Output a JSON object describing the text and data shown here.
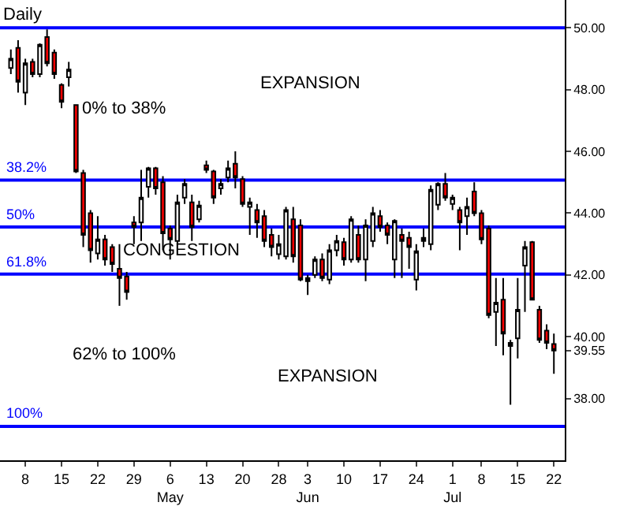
{
  "chart_data": {
    "type": "candlestick",
    "title": "Daily",
    "categories": [
      null,
      null,
      "8",
      null,
      null,
      null,
      null,
      "15",
      null,
      null,
      null,
      null,
      "22",
      null,
      null,
      null,
      null,
      "29",
      null,
      null,
      null,
      null,
      "6\nMay",
      null,
      null,
      null,
      null,
      "13",
      null,
      null,
      null,
      null,
      "20",
      null,
      null,
      null,
      null,
      "28",
      null,
      null,
      null,
      "3\nJun",
      null,
      null,
      null,
      null,
      "10",
      null,
      null,
      null,
      null,
      "17",
      null,
      null,
      null,
      null,
      "24",
      null,
      null,
      null,
      null,
      "1\nJul",
      null,
      null,
      null,
      "8",
      null,
      null,
      null,
      null,
      "15",
      null,
      null,
      null,
      null,
      "22"
    ],
    "ohlc": [
      [
        48.7,
        49.3,
        48.5,
        49.0
      ],
      [
        49.35,
        49.6,
        47.9,
        48.25
      ],
      [
        47.9,
        49.0,
        47.5,
        48.85
      ],
      [
        48.9,
        49.0,
        48.4,
        48.5
      ],
      [
        48.5,
        49.5,
        48.4,
        49.45
      ],
      [
        49.7,
        49.95,
        48.75,
        48.85
      ],
      [
        49.2,
        49.3,
        48.35,
        48.5
      ],
      [
        48.15,
        48.2,
        47.4,
        47.6
      ],
      [
        48.4,
        48.9,
        48.1,
        48.65
      ],
      [
        47.5,
        47.5,
        45.3,
        45.35
      ],
      [
        45.3,
        45.4,
        42.9,
        43.3
      ],
      [
        44.0,
        44.1,
        42.4,
        42.8
      ],
      [
        42.7,
        43.9,
        42.5,
        43.15
      ],
      [
        43.15,
        43.3,
        42.3,
        42.5
      ],
      [
        42.9,
        43.0,
        42.1,
        42.35
      ],
      [
        42.2,
        43.0,
        41.0,
        41.9
      ],
      [
        41.95,
        42.1,
        41.2,
        41.45
      ],
      [
        43.7,
        43.9,
        43.0,
        43.55
      ],
      [
        43.7,
        45.4,
        43.1,
        44.5
      ],
      [
        44.85,
        45.5,
        44.5,
        45.45
      ],
      [
        45.45,
        45.5,
        44.6,
        44.8
      ],
      [
        45.0,
        45.2,
        42.8,
        43.35
      ],
      [
        43.5,
        43.6,
        42.5,
        43.15
      ],
      [
        43.1,
        44.6,
        43.0,
        44.35
      ],
      [
        44.5,
        45.1,
        44.3,
        44.95
      ],
      [
        44.35,
        44.6,
        43.1,
        43.55
      ],
      [
        43.8,
        44.4,
        43.7,
        44.25
      ],
      [
        45.55,
        45.7,
        45.3,
        45.4
      ],
      [
        45.35,
        45.4,
        44.3,
        44.5
      ],
      [
        44.8,
        45.1,
        44.6,
        44.95
      ],
      [
        45.15,
        45.7,
        45.0,
        45.45
      ],
      [
        45.6,
        46.0,
        44.8,
        45.15
      ],
      [
        45.1,
        45.2,
        44.2,
        44.3
      ],
      [
        44.2,
        44.5,
        43.3,
        44.35
      ],
      [
        44.1,
        44.3,
        43.2,
        43.7
      ],
      [
        43.9,
        44.1,
        42.9,
        43.1
      ],
      [
        43.3,
        43.5,
        42.6,
        42.9
      ],
      [
        42.67,
        43.3,
        42.5,
        43.0
      ],
      [
        42.6,
        44.2,
        42.5,
        44.1
      ],
      [
        43.8,
        44.2,
        42.4,
        42.6
      ],
      [
        43.6,
        43.8,
        41.8,
        41.85
      ],
      [
        41.8,
        42.0,
        41.35,
        41.9
      ],
      [
        42.0,
        42.6,
        41.9,
        42.5
      ],
      [
        42.5,
        42.7,
        41.8,
        41.9
      ],
      [
        41.85,
        43.0,
        41.7,
        42.8
      ],
      [
        42.8,
        43.3,
        42.6,
        43.1
      ],
      [
        43.06,
        43.2,
        42.3,
        42.5
      ],
      [
        42.5,
        43.9,
        42.4,
        43.8
      ],
      [
        43.3,
        43.6,
        42.4,
        42.5
      ],
      [
        42.5,
        43.8,
        41.8,
        43.6
      ],
      [
        43.1,
        44.2,
        42.9,
        44.0
      ],
      [
        43.9,
        44.1,
        43.4,
        43.55
      ],
      [
        43.6,
        43.7,
        43.0,
        43.3
      ],
      [
        42.5,
        43.8,
        41.9,
        43.75
      ],
      [
        43.3,
        43.5,
        41.9,
        43.1
      ],
      [
        43.2,
        43.4,
        42.2,
        42.9
      ],
      [
        41.85,
        43.0,
        41.5,
        42.77
      ],
      [
        43.1,
        43.5,
        42.9,
        43.2
      ],
      [
        43.0,
        44.9,
        42.8,
        44.76
      ],
      [
        44.27,
        45.0,
        44.1,
        44.95
      ],
      [
        44.95,
        45.3,
        44.4,
        44.5
      ],
      [
        44.3,
        44.6,
        44.1,
        44.5
      ],
      [
        44.1,
        44.2,
        42.8,
        43.7
      ],
      [
        43.9,
        44.5,
        43.3,
        44.2
      ],
      [
        44.7,
        45.0,
        43.9,
        44.0
      ],
      [
        44.0,
        44.1,
        43.0,
        43.15
      ],
      [
        43.5,
        43.6,
        40.6,
        40.7
      ],
      [
        40.8,
        41.9,
        39.7,
        41.1
      ],
      [
        41.2,
        41.9,
        39.4,
        40.1
      ],
      [
        39.8,
        39.9,
        37.8,
        39.7
      ],
      [
        39.95,
        41.9,
        39.3,
        40.87
      ],
      [
        42.3,
        43.1,
        40.8,
        42.9
      ],
      [
        43.06,
        43.1,
        41.2,
        41.2
      ],
      [
        40.87,
        41.0,
        39.8,
        39.9
      ],
      [
        40.2,
        40.4,
        39.6,
        39.8
      ],
      [
        39.76,
        40.1,
        38.8,
        39.55
      ]
    ],
    "ylim": [
      36.0,
      50.9
    ],
    "yticks": [
      {
        "value": 38,
        "label": "38.00"
      },
      {
        "value": 39.55,
        "label": "39.55"
      },
      {
        "value": 40,
        "label": "40.00"
      },
      {
        "value": 42,
        "label": "42.00"
      },
      {
        "value": 44,
        "label": "44.00"
      },
      {
        "value": 46,
        "label": "46.00"
      },
      {
        "value": 48,
        "label": "48.00"
      },
      {
        "value": 50,
        "label": "50.00"
      }
    ],
    "grid": false,
    "legend": false,
    "ref_lines": [
      {
        "axis": "y",
        "value": 50.0,
        "color": "#0000ff"
      },
      {
        "axis": "y",
        "value": 45.07,
        "color": "#0000ff"
      },
      {
        "axis": "y",
        "value": 43.55,
        "color": "#0000ff"
      },
      {
        "axis": "y",
        "value": 42.03,
        "color": "#0000ff"
      },
      {
        "axis": "y",
        "value": 37.1,
        "color": "#0000ff"
      }
    ],
    "annotations": [
      "EXPANSION",
      "0% to 38%",
      "CONGESTION",
      "62% to 100%",
      "EXPANSION",
      {
        "text": "38.2%",
        "y": 45.07
      },
      {
        "text": "50%",
        "y": 43.55
      },
      {
        "text": "61.8%",
        "y": 42.03
      },
      {
        "text": "100%",
        "y": 37.1
      }
    ]
  }
}
